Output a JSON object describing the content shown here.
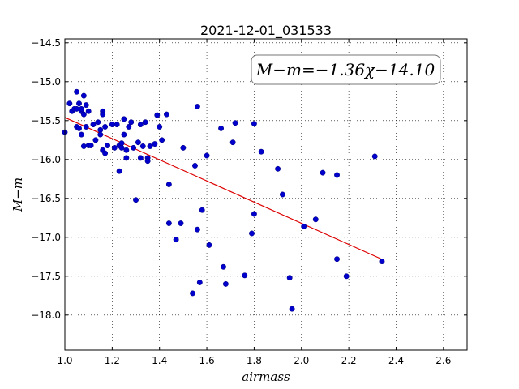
{
  "chart_data": {
    "type": "scatter",
    "title": "2021-12-01_031533",
    "xlabel": "airmass",
    "ylabel": "M−m",
    "xlim": [
      1.0,
      2.7
    ],
    "ylim": [
      -18.45,
      -14.45
    ],
    "y_inverted": true,
    "grid": true,
    "xticks": [
      "1.0",
      "1.2",
      "1.4",
      "1.6",
      "1.8",
      "2.0",
      "2.2",
      "2.4",
      "2.6"
    ],
    "yticks": [
      "−14.5",
      "−15.0",
      "−15.5",
      "−16.0",
      "−16.5",
      "−17.0",
      "−17.5",
      "−18.0"
    ],
    "annotation": "M−m=−1.36χ−14.10",
    "point_color": "#0000cc",
    "fit_color": "#dd0000",
    "fit": {
      "slope": -1.36,
      "intercept": -14.1,
      "x_range": [
        1.0,
        2.335
      ]
    },
    "points": [
      [
        1.0,
        -15.65
      ],
      [
        1.02,
        -15.28
      ],
      [
        1.03,
        -15.38
      ],
      [
        1.04,
        -15.35
      ],
      [
        1.05,
        -15.13
      ],
      [
        1.05,
        -15.35
      ],
      [
        1.05,
        -15.58
      ],
      [
        1.06,
        -15.6
      ],
      [
        1.06,
        -15.28
      ],
      [
        1.07,
        -15.38
      ],
      [
        1.07,
        -15.68
      ],
      [
        1.07,
        -15.35
      ],
      [
        1.08,
        -15.18
      ],
      [
        1.08,
        -15.42
      ],
      [
        1.08,
        -15.83
      ],
      [
        1.09,
        -15.3
      ],
      [
        1.09,
        -15.58
      ],
      [
        1.1,
        -15.82
      ],
      [
        1.1,
        -15.38
      ],
      [
        1.11,
        -15.82
      ],
      [
        1.12,
        -15.55
      ],
      [
        1.13,
        -15.75
      ],
      [
        1.14,
        -15.52
      ],
      [
        1.15,
        -15.62
      ],
      [
        1.15,
        -15.68
      ],
      [
        1.16,
        -15.38
      ],
      [
        1.16,
        -15.42
      ],
      [
        1.16,
        -15.88
      ],
      [
        1.17,
        -15.92
      ],
      [
        1.17,
        -15.58
      ],
      [
        1.18,
        -15.82
      ],
      [
        1.2,
        -15.55
      ],
      [
        1.21,
        -15.85
      ],
      [
        1.22,
        -15.55
      ],
      [
        1.23,
        -15.82
      ],
      [
        1.23,
        -16.15
      ],
      [
        1.24,
        -15.79
      ],
      [
        1.24,
        -15.85
      ],
      [
        1.25,
        -15.48
      ],
      [
        1.25,
        -15.68
      ],
      [
        1.26,
        -15.98
      ],
      [
        1.26,
        -15.88
      ],
      [
        1.27,
        -15.58
      ],
      [
        1.28,
        -15.52
      ],
      [
        1.29,
        -15.85
      ],
      [
        1.3,
        -16.52
      ],
      [
        1.31,
        -15.78
      ],
      [
        1.32,
        -15.55
      ],
      [
        1.32,
        -15.98
      ],
      [
        1.33,
        -15.83
      ],
      [
        1.34,
        -15.52
      ],
      [
        1.35,
        -15.98
      ],
      [
        1.35,
        -16.02
      ],
      [
        1.36,
        -15.83
      ],
      [
        1.38,
        -15.8
      ],
      [
        1.39,
        -15.43
      ],
      [
        1.4,
        -15.58
      ],
      [
        1.41,
        -15.75
      ],
      [
        1.43,
        -15.42
      ],
      [
        1.44,
        -16.32
      ],
      [
        1.44,
        -16.82
      ],
      [
        1.47,
        -17.03
      ],
      [
        1.49,
        -16.82
      ],
      [
        1.5,
        -15.85
      ],
      [
        1.54,
        -17.72
      ],
      [
        1.55,
        -16.08
      ],
      [
        1.56,
        -15.32
      ],
      [
        1.56,
        -16.9
      ],
      [
        1.57,
        -17.58
      ],
      [
        1.58,
        -16.65
      ],
      [
        1.6,
        -15.95
      ],
      [
        1.61,
        -17.1
      ],
      [
        1.66,
        -15.6
      ],
      [
        1.67,
        -17.38
      ],
      [
        1.68,
        -17.6
      ],
      [
        1.71,
        -15.78
      ],
      [
        1.72,
        -15.53
      ],
      [
        1.76,
        -17.49
      ],
      [
        1.79,
        -16.95
      ],
      [
        1.8,
        -15.54
      ],
      [
        1.8,
        -16.7
      ],
      [
        1.83,
        -15.9
      ],
      [
        1.9,
        -16.12
      ],
      [
        1.92,
        -16.45
      ],
      [
        1.95,
        -17.52
      ],
      [
        1.96,
        -17.92
      ],
      [
        2.01,
        -16.86
      ],
      [
        2.06,
        -16.77
      ],
      [
        2.09,
        -16.17
      ],
      [
        2.15,
        -16.2
      ],
      [
        2.15,
        -17.28
      ],
      [
        2.19,
        -17.5
      ],
      [
        2.31,
        -15.96
      ],
      [
        2.34,
        -17.31
      ]
    ]
  }
}
